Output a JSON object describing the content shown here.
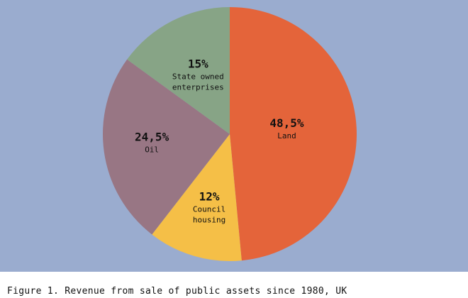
{
  "chart_data": {
    "type": "pie",
    "title": "",
    "slices": [
      {
        "pct_label": "48,5%",
        "label_lines": [
          "Land"
        ],
        "value": 48.5,
        "color": "#e4643a"
      },
      {
        "pct_label": "12%",
        "label_lines": [
          "Council",
          "housing"
        ],
        "value": 12,
        "color": "#f5bf47"
      },
      {
        "pct_label": "24,5%",
        "label_lines": [
          "Oil"
        ],
        "value": 24.5,
        "color": "#987684"
      },
      {
        "pct_label": "15%",
        "label_lines": [
          "State owned",
          "enterprises"
        ],
        "value": 15,
        "color": "#87a486"
      }
    ],
    "start_angle_deg": 0,
    "direction": "clockwise",
    "background_color": "#9aaccf"
  },
  "caption": "Figure 1. Revenue from sale of public assets since 1980, UK"
}
